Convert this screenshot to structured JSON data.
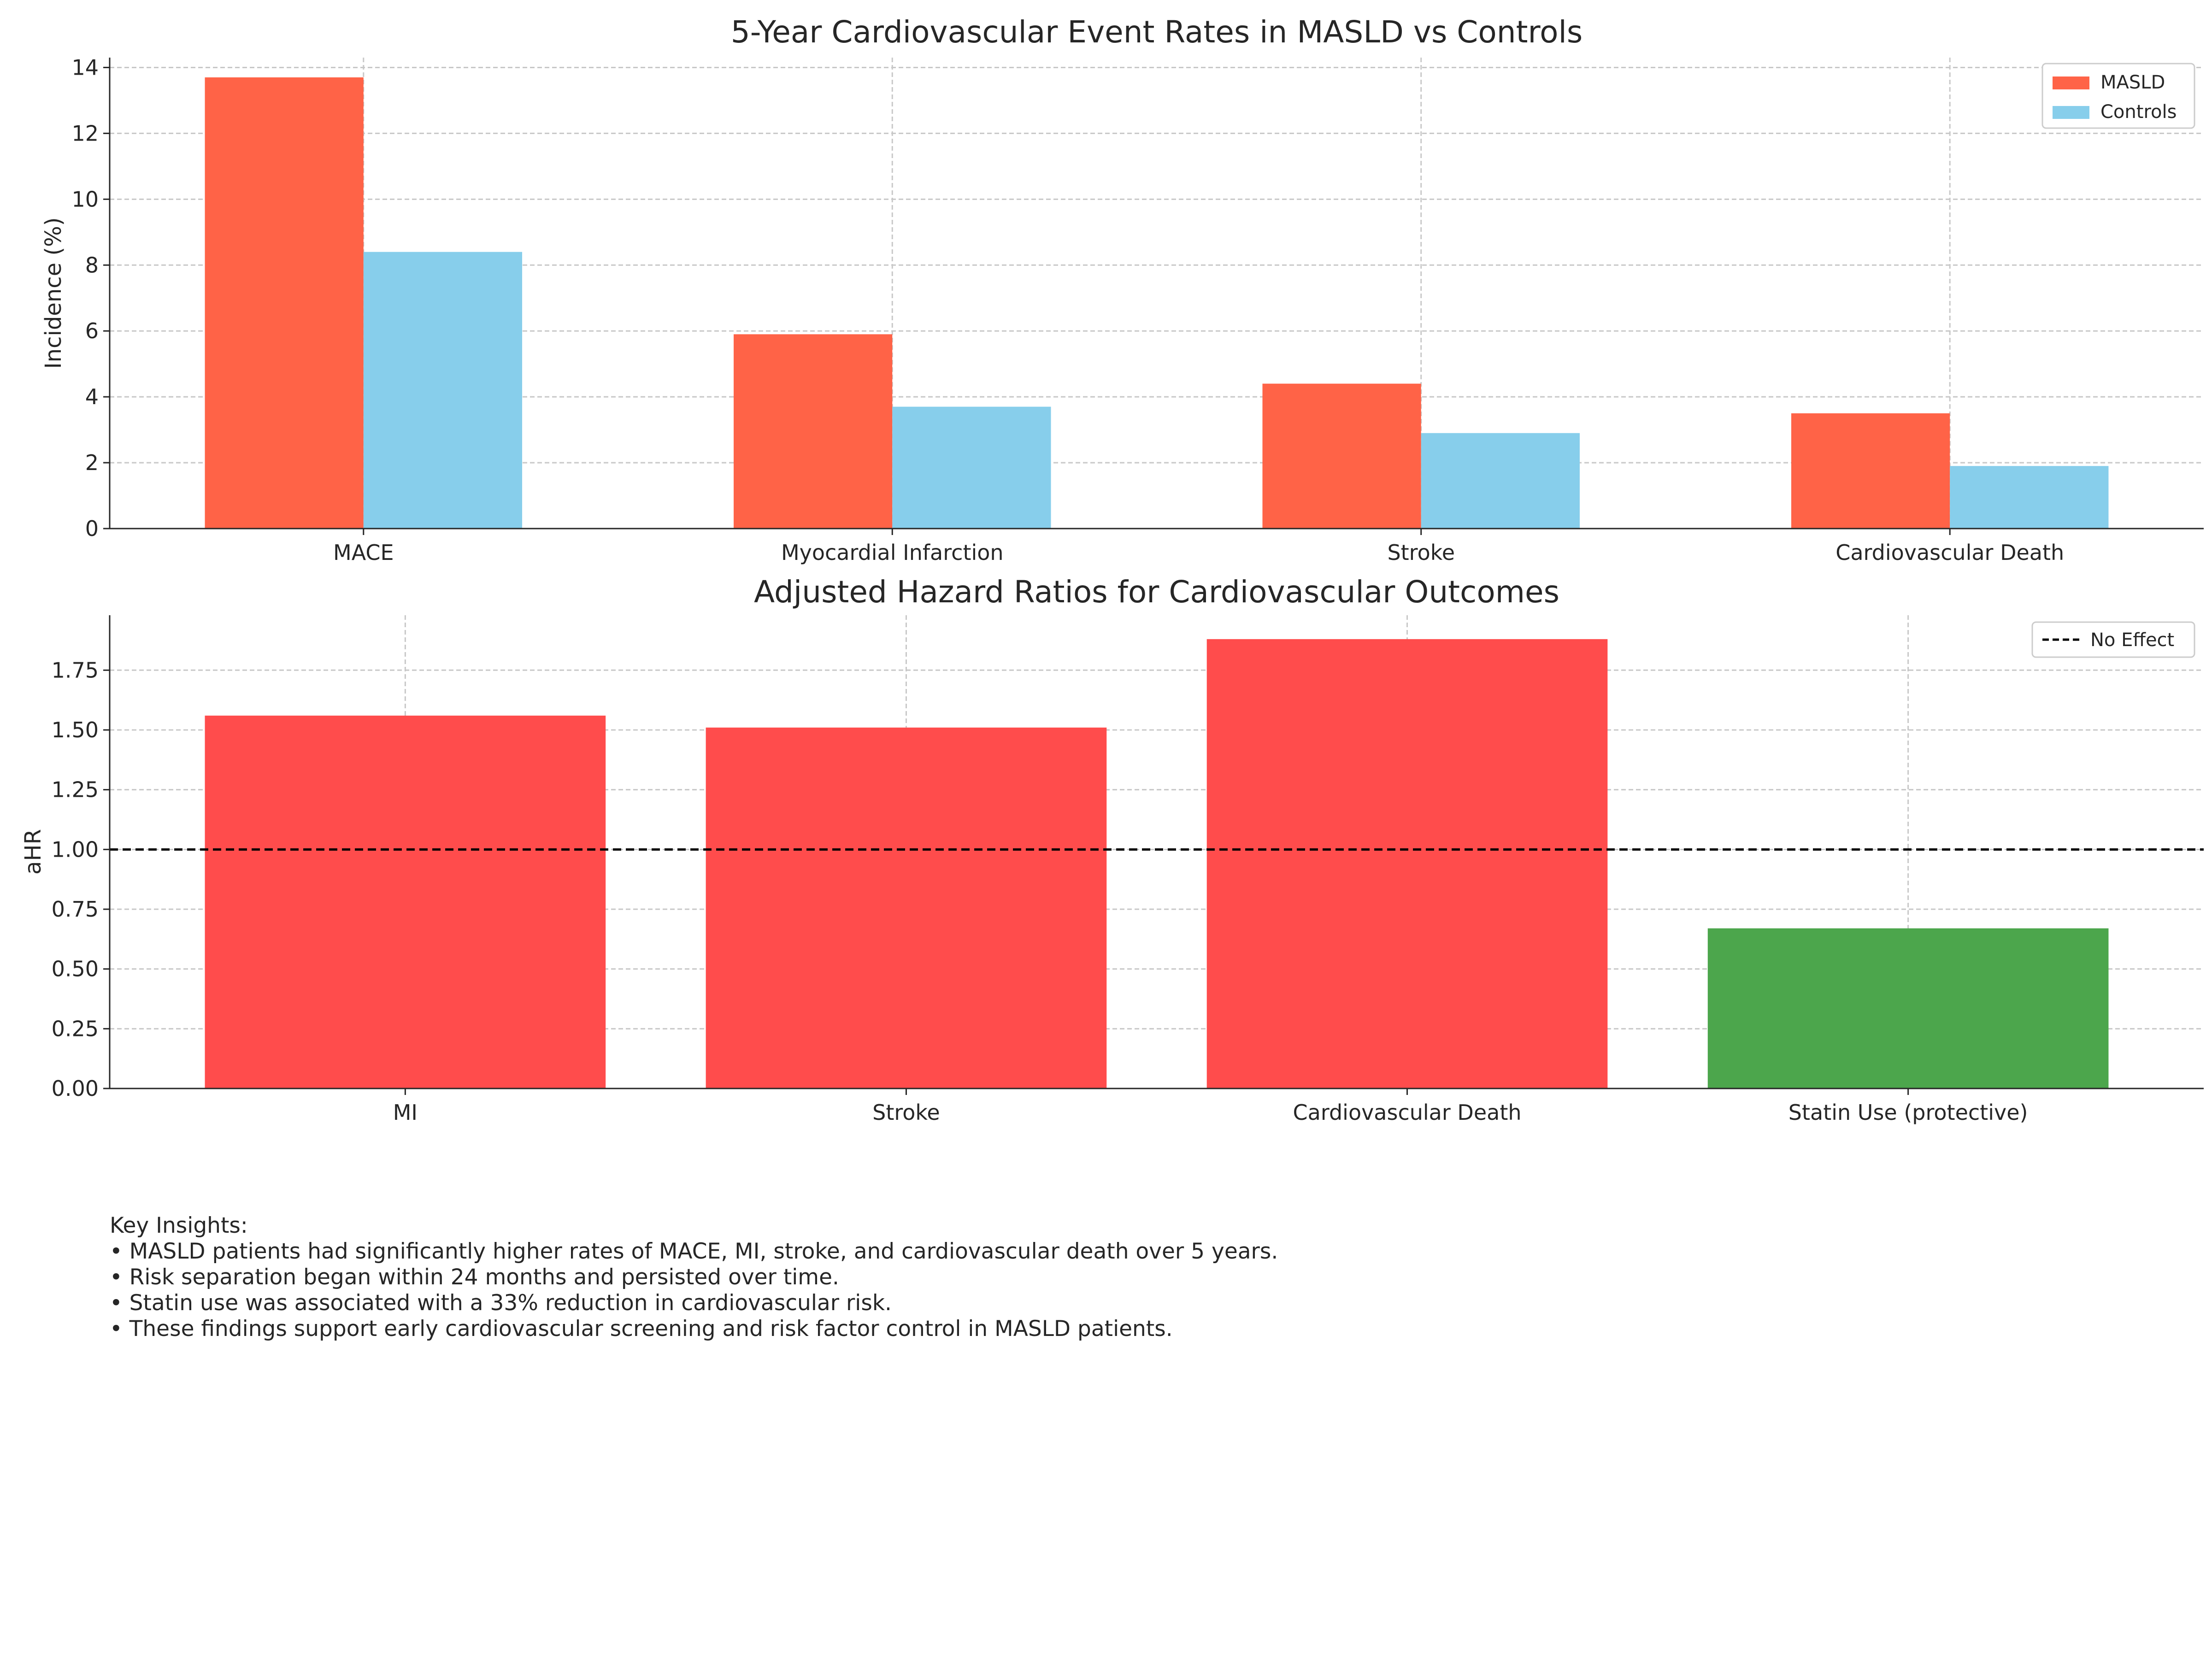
{
  "chart_data": [
    {
      "type": "bar",
      "title": "5-Year Cardiovascular Event Rates in MASLD vs Controls",
      "xlabel": "",
      "ylabel": "Incidence (%)",
      "categories": [
        "MACE",
        "Myocardial Infarction",
        "Stroke",
        "Cardiovascular Death"
      ],
      "series": [
        {
          "name": "MASLD",
          "color": "#ff6347",
          "values": [
            13.7,
            5.9,
            4.4,
            3.5
          ]
        },
        {
          "name": "Controls",
          "color": "#87ceeb",
          "values": [
            8.4,
            3.7,
            2.9,
            1.9
          ]
        }
      ],
      "ylim": [
        0,
        14.3
      ],
      "yticks": [
        "0",
        "2",
        "4",
        "6",
        "8",
        "10",
        "12",
        "14"
      ],
      "grid": true,
      "legend": "top-right"
    },
    {
      "type": "bar",
      "title": "Adjusted Hazard Ratios for Cardiovascular Outcomes",
      "xlabel": "",
      "ylabel": "aHR",
      "categories": [
        "MI",
        "Stroke",
        "Cardiovascular Death",
        "Statin Use (protective)"
      ],
      "values": [
        1.56,
        1.51,
        1.88,
        0.67
      ],
      "colors": [
        "#ff4c4c",
        "#ff4c4c",
        "#ff4c4c",
        "#4ca64c"
      ],
      "ylim": [
        0,
        1.98
      ],
      "yticks": [
        "0.00",
        "0.25",
        "0.50",
        "0.75",
        "1.00",
        "1.25",
        "1.50",
        "1.75"
      ],
      "reference_line": {
        "value": 1.0,
        "label": "No Effect",
        "style": "dashed"
      },
      "grid": true,
      "legend": "top-right"
    }
  ],
  "insights": {
    "heading": "Key Insights:",
    "items": [
      "• MASLD patients had significantly higher rates of MACE, MI, stroke, and cardiovascular death over 5 years.",
      "• Risk separation began within 24 months and persisted over time.",
      "• Statin use was associated with a 33% reduction in cardiovascular risk.",
      "• These findings support early cardiovascular screening and risk factor control in MASLD patients."
    ]
  }
}
